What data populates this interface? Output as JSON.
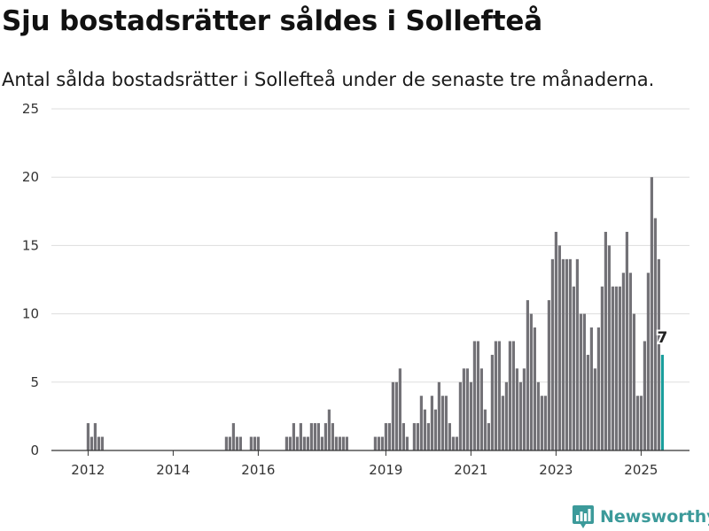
{
  "header": {
    "title": "Sju bostadsrätter såldes i Sollefteå",
    "subtitle": "Antal sålda bostadsrätter i Sollefteå under de senaste tre månaderna."
  },
  "brand": {
    "name": "Newsworthy",
    "icon": "newsworthy-chart-icon"
  },
  "colors": {
    "bar": "#737277",
    "highlight": "#1a9e9c",
    "grid": "#dddddd",
    "brand": "#3c9a9a"
  },
  "chart_data": {
    "type": "bar",
    "title": "Sju bostadsrätter såldes i Sollefteå",
    "xlabel": "",
    "ylabel": "",
    "ylim": [
      0,
      25
    ],
    "yticks": [
      0,
      5,
      10,
      15,
      20,
      25
    ],
    "xticks": [
      "2012",
      "2014",
      "2016",
      "2019",
      "2021",
      "2023",
      "2025"
    ],
    "grid": true,
    "highlight_label": "7",
    "bars": [
      {
        "t": "2012-01",
        "v": 2
      },
      {
        "t": "2012-02",
        "v": 1
      },
      {
        "t": "2012-03",
        "v": 2
      },
      {
        "t": "2012-04",
        "v": 1
      },
      {
        "t": "2012-05",
        "v": 1
      },
      {
        "t": "2015-04",
        "v": 1
      },
      {
        "t": "2015-05",
        "v": 1
      },
      {
        "t": "2015-06",
        "v": 2
      },
      {
        "t": "2015-07",
        "v": 1
      },
      {
        "t": "2015-08",
        "v": 1
      },
      {
        "t": "2015-11",
        "v": 1
      },
      {
        "t": "2015-12",
        "v": 1
      },
      {
        "t": "2016-01",
        "v": 1
      },
      {
        "t": "2016-09",
        "v": 1
      },
      {
        "t": "2016-10",
        "v": 1
      },
      {
        "t": "2016-11",
        "v": 2
      },
      {
        "t": "2016-12",
        "v": 1
      },
      {
        "t": "2017-01",
        "v": 2
      },
      {
        "t": "2017-02",
        "v": 1
      },
      {
        "t": "2017-03",
        "v": 1
      },
      {
        "t": "2017-04",
        "v": 2
      },
      {
        "t": "2017-05",
        "v": 2
      },
      {
        "t": "2017-06",
        "v": 2
      },
      {
        "t": "2017-07",
        "v": 1
      },
      {
        "t": "2017-08",
        "v": 2
      },
      {
        "t": "2017-09",
        "v": 3
      },
      {
        "t": "2017-10",
        "v": 2
      },
      {
        "t": "2017-11",
        "v": 1
      },
      {
        "t": "2017-12",
        "v": 1
      },
      {
        "t": "2018-01",
        "v": 1
      },
      {
        "t": "2018-02",
        "v": 1
      },
      {
        "t": "2018-10",
        "v": 1
      },
      {
        "t": "2018-11",
        "v": 1
      },
      {
        "t": "2018-12",
        "v": 1
      },
      {
        "t": "2019-01",
        "v": 2
      },
      {
        "t": "2019-02",
        "v": 2
      },
      {
        "t": "2019-03",
        "v": 5
      },
      {
        "t": "2019-04",
        "v": 5
      },
      {
        "t": "2019-05",
        "v": 6
      },
      {
        "t": "2019-06",
        "v": 2
      },
      {
        "t": "2019-07",
        "v": 1
      },
      {
        "t": "2019-09",
        "v": 2
      },
      {
        "t": "2019-10",
        "v": 2
      },
      {
        "t": "2019-11",
        "v": 4
      },
      {
        "t": "2019-12",
        "v": 3
      },
      {
        "t": "2020-01",
        "v": 2
      },
      {
        "t": "2020-02",
        "v": 4
      },
      {
        "t": "2020-03",
        "v": 3
      },
      {
        "t": "2020-04",
        "v": 5
      },
      {
        "t": "2020-05",
        "v": 4
      },
      {
        "t": "2020-06",
        "v": 4
      },
      {
        "t": "2020-07",
        "v": 2
      },
      {
        "t": "2020-08",
        "v": 1
      },
      {
        "t": "2020-09",
        "v": 1
      },
      {
        "t": "2020-10",
        "v": 5
      },
      {
        "t": "2020-11",
        "v": 6
      },
      {
        "t": "2020-12",
        "v": 6
      },
      {
        "t": "2021-01",
        "v": 5
      },
      {
        "t": "2021-02",
        "v": 8
      },
      {
        "t": "2021-03",
        "v": 8
      },
      {
        "t": "2021-04",
        "v": 6
      },
      {
        "t": "2021-05",
        "v": 3
      },
      {
        "t": "2021-06",
        "v": 2
      },
      {
        "t": "2021-07",
        "v": 7
      },
      {
        "t": "2021-08",
        "v": 8
      },
      {
        "t": "2021-09",
        "v": 8
      },
      {
        "t": "2021-10",
        "v": 4
      },
      {
        "t": "2021-11",
        "v": 5
      },
      {
        "t": "2021-12",
        "v": 8
      },
      {
        "t": "2022-01",
        "v": 8
      },
      {
        "t": "2022-02",
        "v": 6
      },
      {
        "t": "2022-03",
        "v": 5
      },
      {
        "t": "2022-04",
        "v": 6
      },
      {
        "t": "2022-05",
        "v": 11
      },
      {
        "t": "2022-06",
        "v": 10
      },
      {
        "t": "2022-07",
        "v": 9
      },
      {
        "t": "2022-08",
        "v": 5
      },
      {
        "t": "2022-09",
        "v": 4
      },
      {
        "t": "2022-10",
        "v": 4
      },
      {
        "t": "2022-11",
        "v": 11
      },
      {
        "t": "2022-12",
        "v": 14
      },
      {
        "t": "2023-01",
        "v": 16
      },
      {
        "t": "2023-02",
        "v": 15
      },
      {
        "t": "2023-03",
        "v": 14
      },
      {
        "t": "2023-04",
        "v": 14
      },
      {
        "t": "2023-05",
        "v": 14
      },
      {
        "t": "2023-06",
        "v": 12
      },
      {
        "t": "2023-07",
        "v": 14
      },
      {
        "t": "2023-08",
        "v": 10
      },
      {
        "t": "2023-09",
        "v": 10
      },
      {
        "t": "2023-10",
        "v": 7
      },
      {
        "t": "2023-11",
        "v": 9
      },
      {
        "t": "2023-12",
        "v": 6
      },
      {
        "t": "2024-01",
        "v": 9
      },
      {
        "t": "2024-02",
        "v": 12
      },
      {
        "t": "2024-03",
        "v": 16
      },
      {
        "t": "2024-04",
        "v": 15
      },
      {
        "t": "2024-05",
        "v": 12
      },
      {
        "t": "2024-06",
        "v": 12
      },
      {
        "t": "2024-07",
        "v": 12
      },
      {
        "t": "2024-08",
        "v": 13
      },
      {
        "t": "2024-09",
        "v": 16
      },
      {
        "t": "2024-10",
        "v": 13
      },
      {
        "t": "2024-11",
        "v": 10
      },
      {
        "t": "2024-12",
        "v": 4
      },
      {
        "t": "2025-01",
        "v": 4
      },
      {
        "t": "2025-02",
        "v": 8
      },
      {
        "t": "2025-03",
        "v": 13
      },
      {
        "t": "2025-04",
        "v": 20
      },
      {
        "t": "2025-05",
        "v": 17
      },
      {
        "t": "2025-06",
        "v": 14
      },
      {
        "t": "2025-07",
        "v": 7,
        "highlight": true
      }
    ]
  }
}
